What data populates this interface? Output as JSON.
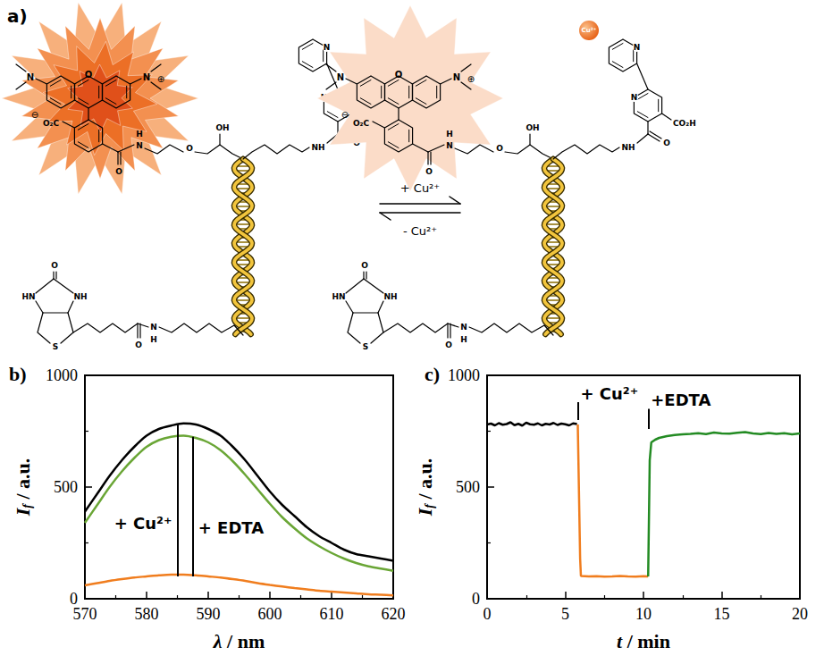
{
  "diagram": {
    "panel": "a)",
    "forward": "+ Cu²⁺",
    "reverse": "- Cu²⁺",
    "ion": "Cu²⁺",
    "labels": {
      "amine": "N",
      "iminium": "N",
      "plus": "⊕",
      "minus": "⊖",
      "xanthene_oxygen": "O",
      "carboxylate": "O₂C",
      "amide_n": "N",
      "amide_h": "H",
      "carbonyl_o": "O",
      "ether_o": "O",
      "hydroxyl": "OH",
      "amide_nh": "NH",
      "pyridine_n": "N",
      "acid": "CO₂H",
      "urea_o": "O",
      "urea_hn": "HN",
      "urea_nh": "NH",
      "thioether": "S",
      "biotin_amide_n": "N",
      "biotin_amide_h": "H",
      "biotin_carbonyl_o": "O"
    }
  },
  "chart_data": [
    {
      "type": "line",
      "panel": "b)",
      "xlabel": {
        "italic": "λ",
        "text": " / nm"
      },
      "ylabel": {
        "italic": "I",
        "sub": "f",
        "text": " / a.u."
      },
      "xlim": [
        570,
        620
      ],
      "xticks": [
        570,
        580,
        590,
        600,
        610,
        620
      ],
      "ylim": [
        0,
        1000
      ],
      "yticks": [
        0,
        500,
        1000
      ],
      "x": [
        570,
        572,
        574,
        576,
        578,
        580,
        582,
        584,
        586,
        588,
        590,
        592,
        594,
        596,
        598,
        600,
        602,
        604,
        606,
        608,
        610,
        612,
        614,
        616,
        618,
        620
      ],
      "series": [
        {
          "color": "#000000",
          "values": [
            390,
            470,
            550,
            620,
            680,
            730,
            760,
            775,
            785,
            780,
            760,
            730,
            680,
            620,
            550,
            480,
            420,
            370,
            320,
            280,
            250,
            220,
            200,
            190,
            180,
            170
          ]
        },
        {
          "color": "#6aa636",
          "values": [
            340,
            420,
            500,
            570,
            630,
            680,
            710,
            725,
            730,
            720,
            700,
            665,
            615,
            555,
            490,
            425,
            365,
            315,
            270,
            235,
            205,
            180,
            160,
            145,
            135,
            125
          ]
        },
        {
          "color": "#f07d1e",
          "values": [
            60,
            70,
            80,
            88,
            95,
            100,
            105,
            108,
            108,
            105,
            100,
            95,
            88,
            80,
            70,
            62,
            55,
            48,
            42,
            36,
            32,
            28,
            24,
            20,
            18,
            15
          ]
        }
      ],
      "annotations": [
        {
          "text": "+ Cu²⁺",
          "x": 585,
          "y_from": 780,
          "y_to": 100
        },
        {
          "text": "+ EDTA",
          "x": 587.5,
          "y_from": 100,
          "y_to": 725
        }
      ],
      "grid": false
    },
    {
      "type": "line",
      "panel": "c)",
      "xlabel": {
        "italic": "t",
        "text": " / min"
      },
      "ylabel": {
        "italic": "I",
        "sub": "f",
        "text": " / a.u."
      },
      "xlim": [
        0,
        20
      ],
      "xticks": [
        0,
        5,
        10,
        15,
        20
      ],
      "ylim": [
        0,
        1000
      ],
      "yticks": [
        0,
        500,
        1000
      ],
      "series": [
        {
          "color": "#000000",
          "x": [
            0,
            0.25,
            0.5,
            0.75,
            1,
            1.25,
            1.5,
            1.75,
            2,
            2.25,
            2.5,
            2.75,
            3,
            3.25,
            3.5,
            3.75,
            4,
            4.25,
            4.5,
            4.75,
            5,
            5.25,
            5.5,
            5.75
          ],
          "values": [
            780,
            784,
            776,
            786,
            779,
            782,
            790,
            777,
            783,
            775,
            788,
            781,
            779,
            785,
            776,
            783,
            780,
            787,
            778,
            784,
            781,
            776,
            785,
            782
          ]
        },
        {
          "color": "#f07d1e",
          "x": [
            5.8,
            5.95,
            6,
            6.5,
            7,
            7.5,
            8,
            8.5,
            9,
            9.5,
            10,
            10.3
          ],
          "values": [
            780,
            180,
            102,
            100,
            101,
            99,
            100,
            102,
            100,
            99,
            101,
            100
          ]
        },
        {
          "color": "#238b23",
          "x": [
            10.3,
            10.4,
            10.5,
            10.75,
            11,
            11.5,
            12,
            12.5,
            13,
            13.5,
            14,
            14.5,
            15,
            15.5,
            16,
            16.5,
            17,
            17.5,
            18,
            18.5,
            19,
            19.5,
            20
          ],
          "values": [
            100,
            620,
            700,
            712,
            720,
            728,
            733,
            736,
            738,
            741,
            737,
            744,
            740,
            739,
            743,
            746,
            740,
            737,
            742,
            738,
            741,
            736,
            740
          ]
        }
      ],
      "annotations": [
        {
          "text": "+ Cu²⁺",
          "x": 5.8,
          "y_from": 880,
          "y_to": 800
        },
        {
          "text": "+EDTA",
          "x": 10.3,
          "y_from": 850,
          "y_to": 760
        }
      ],
      "grid": false
    }
  ]
}
